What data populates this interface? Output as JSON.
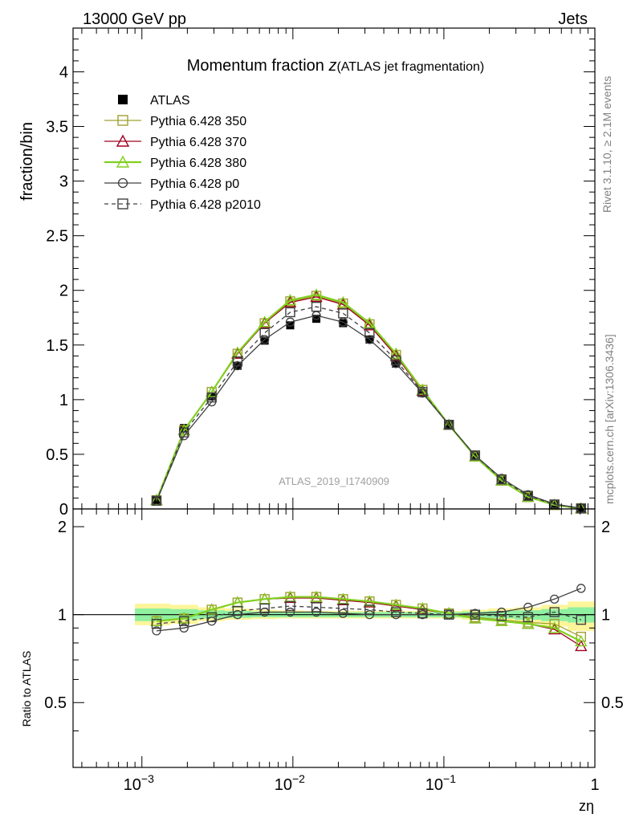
{
  "header": {
    "left": "13000 GeV pp",
    "right": "Jets"
  },
  "side_text": {
    "rivet": "Rivet 3.1.10, ≥ 2.1M events",
    "mcplots": "mcplots.cern.ch [arXiv:1306.3436]"
  },
  "watermark": "ATLAS_2019_I1740909",
  "chart_data": [
    {
      "type": "line",
      "panel": "main",
      "title_main": "Momentum fraction ",
      "title_z": "z",
      "title_sub": "(ATLAS jet fragmentation)",
      "ylabel": "fraction/bin",
      "xlabel": "zη",
      "x_scale": "log",
      "xlim": [
        0.00035,
        1
      ],
      "ylim": [
        0,
        4.4
      ],
      "yticks": [
        0,
        0.5,
        1,
        1.5,
        2,
        2.5,
        3,
        3.5,
        4
      ],
      "ytick_labels": [
        "0",
        "0.5",
        "1",
        "1.5",
        "2",
        "2.5",
        "3",
        "3.5",
        "4"
      ],
      "xtick_labels": [
        {
          "base": "10",
          "exp": "−3",
          "value": 0.001
        },
        {
          "base": "10",
          "exp": "−2",
          "value": 0.01
        },
        {
          "base": "10",
          "exp": "−1",
          "value": 0.1
        },
        {
          "base": "1",
          "exp": "",
          "value": 1
        }
      ],
      "legend_position": "top-left",
      "x": [
        0.00125,
        0.0019,
        0.0029,
        0.0043,
        0.0065,
        0.0096,
        0.0143,
        0.0215,
        0.0322,
        0.0482,
        0.0722,
        0.108,
        0.161,
        0.241,
        0.361,
        0.54,
        0.81
      ],
      "series": [
        {
          "name": "ATLAS",
          "color": "#000000",
          "marker": "filled-square",
          "line": "none",
          "values": [
            0.08,
            0.74,
            1.03,
            1.31,
            1.54,
            1.68,
            1.74,
            1.7,
            1.55,
            1.33,
            1.06,
            0.77,
            0.49,
            0.27,
            0.12,
            0.04,
            0.005
          ]
        },
        {
          "name": "Pythia 6.428 350",
          "color": "#a0a030",
          "marker": "open-square",
          "line": "solid",
          "values": [
            0.08,
            0.72,
            1.07,
            1.42,
            1.7,
            1.9,
            1.95,
            1.88,
            1.69,
            1.41,
            1.09,
            0.77,
            0.48,
            0.26,
            0.11,
            0.04,
            0.005
          ]
        },
        {
          "name": "Pythia 6.428 370",
          "color": "#a00020",
          "marker": "open-triangle",
          "line": "solid",
          "values": [
            0.08,
            0.72,
            1.07,
            1.42,
            1.7,
            1.89,
            1.94,
            1.87,
            1.68,
            1.4,
            1.08,
            0.77,
            0.48,
            0.26,
            0.11,
            0.036,
            0.004
          ]
        },
        {
          "name": "Pythia 6.428 380",
          "color": "#80d020",
          "marker": "open-triangle",
          "line": "solid",
          "values": [
            0.08,
            0.72,
            1.07,
            1.43,
            1.71,
            1.91,
            1.96,
            1.89,
            1.7,
            1.42,
            1.09,
            0.77,
            0.48,
            0.26,
            0.11,
            0.037,
            0.004
          ]
        },
        {
          "name": "Pythia 6.428 p0",
          "color": "#404040",
          "marker": "open-circle",
          "line": "solid",
          "values": [
            0.07,
            0.67,
            0.98,
            1.31,
            1.55,
            1.71,
            1.77,
            1.71,
            1.55,
            1.33,
            1.06,
            0.77,
            0.49,
            0.28,
            0.13,
            0.045,
            0.006
          ]
        },
        {
          "name": "Pythia 6.428 p2010",
          "color": "#404040",
          "marker": "open-square",
          "line": "dashed",
          "values": [
            0.075,
            0.7,
            1.02,
            1.35,
            1.61,
            1.8,
            1.85,
            1.79,
            1.61,
            1.36,
            1.07,
            0.77,
            0.49,
            0.27,
            0.12,
            0.041,
            0.0049
          ]
        }
      ]
    },
    {
      "type": "line",
      "panel": "ratio",
      "ylabel": "Ratio to ATLAS",
      "x_scale": "log",
      "xlim": [
        0.00035,
        1
      ],
      "ylim": [
        0.3,
        2.3
      ],
      "y_scale": "log",
      "yticks": [
        0.5,
        1,
        2
      ],
      "ytick_labels": [
        "0.5",
        "1",
        "2"
      ],
      "reference_line": 1,
      "x": [
        0.00125,
        0.0019,
        0.0029,
        0.0043,
        0.0065,
        0.0096,
        0.0143,
        0.0215,
        0.0322,
        0.0482,
        0.0722,
        0.108,
        0.161,
        0.241,
        0.361,
        0.54,
        0.81
      ],
      "band_yellow": [
        [
          0.92,
          1.09
        ],
        [
          0.93,
          1.08
        ],
        [
          0.95,
          1.06
        ],
        [
          0.96,
          1.05
        ],
        [
          0.965,
          1.04
        ],
        [
          0.97,
          1.035
        ],
        [
          0.97,
          1.03
        ],
        [
          0.97,
          1.03
        ],
        [
          0.97,
          1.03
        ],
        [
          0.97,
          1.03
        ],
        [
          0.97,
          1.03
        ],
        [
          0.97,
          1.03
        ],
        [
          0.96,
          1.04
        ],
        [
          0.95,
          1.05
        ],
        [
          0.93,
          1.06
        ],
        [
          0.91,
          1.08
        ],
        [
          0.88,
          1.11
        ]
      ],
      "band_green": [
        [
          0.95,
          1.05
        ],
        [
          0.96,
          1.045
        ],
        [
          0.97,
          1.035
        ],
        [
          0.975,
          1.03
        ],
        [
          0.98,
          1.025
        ],
        [
          0.98,
          1.02
        ],
        [
          0.98,
          1.02
        ],
        [
          0.98,
          1.02
        ],
        [
          0.98,
          1.02
        ],
        [
          0.98,
          1.02
        ],
        [
          0.98,
          1.02
        ],
        [
          0.98,
          1.02
        ],
        [
          0.975,
          1.025
        ],
        [
          0.97,
          1.03
        ],
        [
          0.96,
          1.035
        ],
        [
          0.95,
          1.045
        ],
        [
          0.94,
          1.06
        ]
      ],
      "series": [
        {
          "name": "Pythia 6.428 350",
          "color": "#a0a030",
          "marker": "open-square",
          "line": "solid",
          "values": [
            0.95,
            0.97,
            1.04,
            1.1,
            1.13,
            1.15,
            1.15,
            1.13,
            1.11,
            1.08,
            1.05,
            1.01,
            0.98,
            0.96,
            0.94,
            0.93,
            0.84
          ]
        },
        {
          "name": "Pythia 6.428 370",
          "color": "#a00020",
          "marker": "open-triangle",
          "line": "solid",
          "values": [
            0.95,
            0.97,
            1.04,
            1.1,
            1.13,
            1.14,
            1.14,
            1.12,
            1.1,
            1.07,
            1.04,
            1.01,
            0.97,
            0.95,
            0.93,
            0.89,
            0.78
          ]
        },
        {
          "name": "Pythia 6.428 380",
          "color": "#80d020",
          "marker": "open-triangle",
          "line": "solid",
          "values": [
            0.95,
            0.97,
            1.04,
            1.1,
            1.13,
            1.15,
            1.15,
            1.13,
            1.11,
            1.08,
            1.05,
            1.01,
            0.97,
            0.95,
            0.93,
            0.9,
            0.81
          ]
        },
        {
          "name": "Pythia 6.428 p0",
          "color": "#404040",
          "marker": "open-circle",
          "line": "solid",
          "values": [
            0.88,
            0.9,
            0.95,
            1.0,
            1.02,
            1.02,
            1.02,
            1.01,
            1.0,
            1.0,
            1.0,
            1.0,
            1.01,
            1.02,
            1.06,
            1.13,
            1.23
          ]
        },
        {
          "name": "Pythia 6.428 p2010",
          "color": "#404040",
          "marker": "open-square",
          "line": "dashed",
          "values": [
            0.93,
            0.95,
            0.98,
            1.03,
            1.05,
            1.07,
            1.06,
            1.05,
            1.04,
            1.02,
            1.01,
            1.0,
            1.0,
            0.99,
            0.98,
            1.02,
            0.96
          ]
        }
      ]
    }
  ]
}
